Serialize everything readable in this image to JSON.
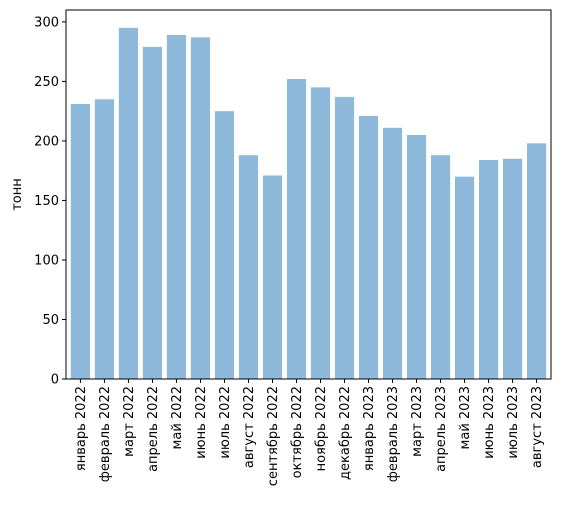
{
  "chart_data": {
    "type": "bar",
    "title": "",
    "xlabel": "",
    "ylabel": "тонн",
    "ylim": [
      0,
      310
    ],
    "yticks": [
      0,
      50,
      100,
      150,
      200,
      250,
      300
    ],
    "grid": false,
    "bar_color": "#8fb9da",
    "categories": [
      "январь 2022",
      "февраль 2022",
      "март 2022",
      "апрель 2022",
      "май 2022",
      "июнь 2022",
      "июль 2022",
      "август 2022",
      "сентябрь 2022",
      "октябрь 2022",
      "ноябрь 2022",
      "декабрь 2022",
      "январь 2023",
      "февраль 2023",
      "март 2023",
      "апрель 2023",
      "май 2023",
      "июнь 2023",
      "июль 2023",
      "август 2023"
    ],
    "values": [
      231,
      235,
      295,
      279,
      289,
      287,
      225,
      188,
      171,
      252,
      245,
      237,
      221,
      211,
      205,
      188,
      170,
      184,
      185,
      198
    ]
  }
}
